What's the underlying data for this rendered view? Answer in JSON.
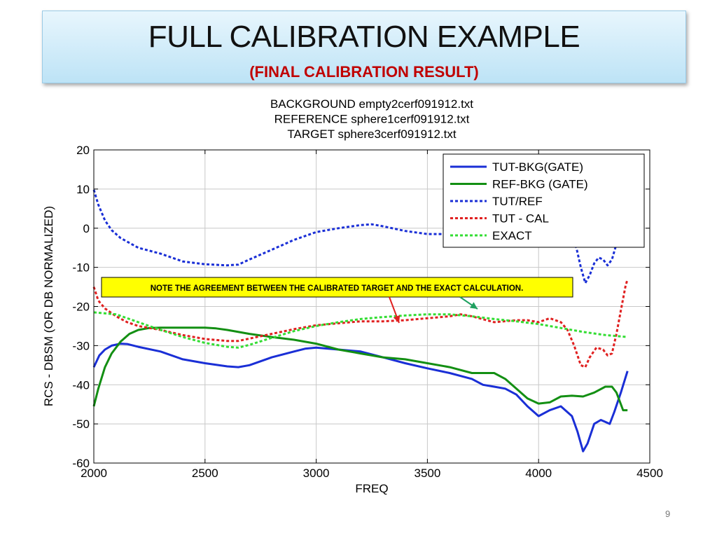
{
  "slide": {
    "title": "FULL CALIBRATION EXAMPLE",
    "subtitle": "(FINAL CALIBRATION RESULT)",
    "page_number": "9"
  },
  "chart_data": {
    "type": "line",
    "title_lines": [
      "BACKGROUND empty2cerf091912.txt",
      "REFERENCE sphere1cerf091912.txt",
      "TARGET sphere3cerf091912.txt"
    ],
    "xlabel": "FREQ",
    "ylabel": "RCS - DBSM (OR DB NORMALIZED)",
    "xlim": [
      2000,
      4500
    ],
    "ylim": [
      -60,
      20
    ],
    "xticks": [
      2000,
      2500,
      3000,
      3500,
      4000,
      4500
    ],
    "yticks": [
      20,
      10,
      0,
      -10,
      -20,
      -30,
      -40,
      -50,
      -60
    ],
    "grid": true,
    "legend_position": "top-right",
    "annotation": {
      "text": "NOTE THE AGREEMENT BETWEEN THE CALIBRATED TARGET AND THE EXACT CALCULATION.",
      "background": "#ffff00",
      "arrow_colors": [
        "#e02020",
        "#20a060"
      ]
    },
    "series": [
      {
        "name": "TUT-BKG(GATE)",
        "color": "#1a2fd6",
        "style": "solid",
        "points": [
          [
            2000,
            -35.5
          ],
          [
            2025,
            -32.5
          ],
          [
            2050,
            -31
          ],
          [
            2080,
            -30
          ],
          [
            2120,
            -29.5
          ],
          [
            2150,
            -29.6
          ],
          [
            2200,
            -30.3
          ],
          [
            2300,
            -31.5
          ],
          [
            2400,
            -33.5
          ],
          [
            2500,
            -34.5
          ],
          [
            2600,
            -35.3
          ],
          [
            2650,
            -35.5
          ],
          [
            2700,
            -35
          ],
          [
            2800,
            -33
          ],
          [
            2900,
            -31.5
          ],
          [
            2950,
            -30.8
          ],
          [
            3000,
            -30.5
          ],
          [
            3100,
            -31
          ],
          [
            3200,
            -31.5
          ],
          [
            3300,
            -33
          ],
          [
            3400,
            -34.5
          ],
          [
            3500,
            -35.8
          ],
          [
            3600,
            -37
          ],
          [
            3700,
            -38.5
          ],
          [
            3750,
            -40
          ],
          [
            3800,
            -40.5
          ],
          [
            3850,
            -41
          ],
          [
            3900,
            -42.5
          ],
          [
            3950,
            -45.5
          ],
          [
            4000,
            -48
          ],
          [
            4050,
            -46.5
          ],
          [
            4100,
            -45.5
          ],
          [
            4150,
            -48
          ],
          [
            4175,
            -52
          ],
          [
            4200,
            -57
          ],
          [
            4220,
            -55
          ],
          [
            4250,
            -50
          ],
          [
            4280,
            -49
          ],
          [
            4300,
            -49.5
          ],
          [
            4320,
            -50
          ],
          [
            4340,
            -47
          ],
          [
            4370,
            -42
          ],
          [
            4400,
            -36.5
          ]
        ]
      },
      {
        "name": "REF-BKG (GATE)",
        "color": "#138f13",
        "style": "solid",
        "points": [
          [
            2000,
            -45.5
          ],
          [
            2020,
            -41
          ],
          [
            2050,
            -35.5
          ],
          [
            2080,
            -32
          ],
          [
            2120,
            -29
          ],
          [
            2160,
            -27
          ],
          [
            2200,
            -26
          ],
          [
            2250,
            -25.5
          ],
          [
            2300,
            -25.4
          ],
          [
            2400,
            -25.4
          ],
          [
            2500,
            -25.4
          ],
          [
            2550,
            -25.6
          ],
          [
            2600,
            -26
          ],
          [
            2700,
            -27
          ],
          [
            2800,
            -27.8
          ],
          [
            2900,
            -28.5
          ],
          [
            3000,
            -29.5
          ],
          [
            3100,
            -31
          ],
          [
            3200,
            -32
          ],
          [
            3300,
            -33
          ],
          [
            3400,
            -33.5
          ],
          [
            3500,
            -34.5
          ],
          [
            3600,
            -35.5
          ],
          [
            3700,
            -37
          ],
          [
            3750,
            -37
          ],
          [
            3800,
            -37
          ],
          [
            3850,
            -38.5
          ],
          [
            3900,
            -41
          ],
          [
            3950,
            -43.5
          ],
          [
            4000,
            -44.8
          ],
          [
            4050,
            -44.5
          ],
          [
            4100,
            -43
          ],
          [
            4150,
            -42.8
          ],
          [
            4200,
            -43
          ],
          [
            4250,
            -42
          ],
          [
            4300,
            -40.5
          ],
          [
            4330,
            -40.5
          ],
          [
            4350,
            -42
          ],
          [
            4380,
            -46.5
          ],
          [
            4400,
            -46.5
          ]
        ]
      },
      {
        "name": "TUT/REF",
        "color": "#1a2fd6",
        "style": "dotted",
        "points": [
          [
            2000,
            9.8
          ],
          [
            2020,
            6
          ],
          [
            2050,
            2
          ],
          [
            2080,
            -0.5
          ],
          [
            2120,
            -2.5
          ],
          [
            2200,
            -5
          ],
          [
            2300,
            -6.5
          ],
          [
            2400,
            -8.5
          ],
          [
            2500,
            -9.2
          ],
          [
            2600,
            -9.5
          ],
          [
            2650,
            -9.3
          ],
          [
            2700,
            -8
          ],
          [
            2800,
            -5.5
          ],
          [
            2900,
            -3
          ],
          [
            3000,
            -1
          ],
          [
            3100,
            0
          ],
          [
            3200,
            0.8
          ],
          [
            3250,
            1
          ],
          [
            3300,
            0.5
          ],
          [
            3400,
            -0.7
          ],
          [
            3500,
            -1.5
          ],
          [
            3600,
            -1.5
          ],
          [
            3700,
            -1.8
          ],
          [
            3800,
            -3
          ],
          [
            3900,
            -3
          ],
          [
            4000,
            -2.5
          ],
          [
            4100,
            -2
          ],
          [
            4150,
            -2.5
          ],
          [
            4170,
            -5
          ],
          [
            4190,
            -10
          ],
          [
            4210,
            -14
          ],
          [
            4230,
            -12
          ],
          [
            4250,
            -9
          ],
          [
            4270,
            -7.5
          ],
          [
            4290,
            -8
          ],
          [
            4310,
            -9.5
          ],
          [
            4330,
            -8
          ],
          [
            4350,
            -4
          ],
          [
            4365,
            0
          ],
          [
            4380,
            3
          ]
        ]
      },
      {
        "name": "TUT - CAL",
        "color": "#e02020",
        "style": "dotted",
        "points": [
          [
            2000,
            -15
          ],
          [
            2020,
            -18.5
          ],
          [
            2050,
            -20.5
          ],
          [
            2100,
            -22.5
          ],
          [
            2150,
            -24
          ],
          [
            2200,
            -25
          ],
          [
            2300,
            -26
          ],
          [
            2400,
            -27.3
          ],
          [
            2500,
            -28.3
          ],
          [
            2600,
            -28.8
          ],
          [
            2650,
            -28.8
          ],
          [
            2700,
            -28.2
          ],
          [
            2800,
            -27
          ],
          [
            2900,
            -25.8
          ],
          [
            3000,
            -24.8
          ],
          [
            3100,
            -24.3
          ],
          [
            3200,
            -23.8
          ],
          [
            3300,
            -23.8
          ],
          [
            3400,
            -23.5
          ],
          [
            3500,
            -23
          ],
          [
            3600,
            -22.5
          ],
          [
            3650,
            -22
          ],
          [
            3700,
            -22.5
          ],
          [
            3800,
            -24
          ],
          [
            3900,
            -23.5
          ],
          [
            3950,
            -23.5
          ],
          [
            4000,
            -24
          ],
          [
            4050,
            -23
          ],
          [
            4100,
            -24
          ],
          [
            4130,
            -26
          ],
          [
            4160,
            -30
          ],
          [
            4190,
            -35
          ],
          [
            4210,
            -35.5
          ],
          [
            4230,
            -33
          ],
          [
            4260,
            -30.5
          ],
          [
            4290,
            -31
          ],
          [
            4310,
            -32.5
          ],
          [
            4330,
            -32
          ],
          [
            4350,
            -27
          ],
          [
            4370,
            -21
          ],
          [
            4390,
            -15
          ],
          [
            4400,
            -13
          ]
        ]
      },
      {
        "name": "EXACT",
        "color": "#33dd33",
        "style": "dotted",
        "points": [
          [
            2000,
            -21.5
          ],
          [
            2100,
            -22
          ],
          [
            2200,
            -24
          ],
          [
            2300,
            -26
          ],
          [
            2400,
            -27.8
          ],
          [
            2500,
            -29.3
          ],
          [
            2600,
            -30.3
          ],
          [
            2650,
            -30.5
          ],
          [
            2700,
            -29.8
          ],
          [
            2800,
            -28
          ],
          [
            2900,
            -26.3
          ],
          [
            3000,
            -25
          ],
          [
            3100,
            -24
          ],
          [
            3200,
            -23.2
          ],
          [
            3300,
            -22.7
          ],
          [
            3400,
            -22.3
          ],
          [
            3500,
            -22
          ],
          [
            3550,
            -22
          ],
          [
            3600,
            -22
          ],
          [
            3700,
            -22.5
          ],
          [
            3800,
            -23.2
          ],
          [
            3900,
            -23.8
          ],
          [
            4000,
            -24.5
          ],
          [
            4100,
            -25.5
          ],
          [
            4200,
            -26.5
          ],
          [
            4300,
            -27.3
          ],
          [
            4400,
            -27.8
          ]
        ]
      }
    ]
  }
}
